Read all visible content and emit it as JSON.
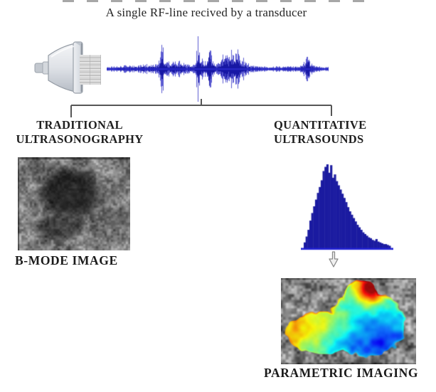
{
  "title": "A single RF-line recived by a transducer",
  "branch_left": {
    "line1": "TRADITIONAL",
    "line2": "ULTRASONOGRAPHY",
    "caption": "B-MODE IMAGE"
  },
  "branch_right": {
    "line1": "QUANTITATIVE",
    "line2": "ULTRASOUNDS",
    "caption": "PARAMETRIC IMAGING"
  },
  "colors": {
    "waveform_blue": "rgba(28,28,192,0.72)",
    "waveform_core": "rgba(16,16,158,0.9)",
    "waveform_center": "rgba(42,42,205,0.85)",
    "histogram_fill": "#1b1ba0",
    "histogram_baseline": "#2424d4",
    "bracket_gray": "#565656",
    "arrow_gray": "#8a8a8a",
    "text_dark": "#1c1c1c"
  },
  "waveform": {
    "seed": 11,
    "envelope": [
      [
        0,
        2
      ],
      [
        14,
        3
      ],
      [
        26,
        4
      ],
      [
        38,
        4
      ],
      [
        52,
        5
      ],
      [
        62,
        5
      ],
      [
        70,
        6
      ],
      [
        74,
        9
      ],
      [
        77,
        33
      ],
      [
        81,
        10
      ],
      [
        86,
        8
      ],
      [
        91,
        11
      ],
      [
        96,
        8
      ],
      [
        101,
        10
      ],
      [
        107,
        8
      ],
      [
        113,
        5
      ],
      [
        120,
        4
      ],
      [
        125,
        9
      ],
      [
        128,
        41
      ],
      [
        132,
        13
      ],
      [
        137,
        10
      ],
      [
        141,
        13
      ],
      [
        144,
        43
      ],
      [
        148,
        13
      ],
      [
        153,
        7
      ],
      [
        158,
        6
      ],
      [
        162,
        17
      ],
      [
        167,
        23
      ],
      [
        171,
        17
      ],
      [
        175,
        25
      ],
      [
        179,
        19
      ],
      [
        183,
        22
      ],
      [
        187,
        16
      ],
      [
        191,
        12
      ],
      [
        196,
        7
      ],
      [
        203,
        4
      ],
      [
        214,
        3
      ],
      [
        228,
        2
      ],
      [
        242,
        3
      ],
      [
        256,
        3
      ],
      [
        268,
        3
      ],
      [
        275,
        5
      ],
      [
        279,
        9
      ],
      [
        282,
        21
      ],
      [
        286,
        8
      ],
      [
        292,
        4
      ],
      [
        301,
        2
      ],
      [
        311,
        2
      ]
    ]
  },
  "histogram": {
    "type": "histogram",
    "bar_heights": [
      0.07,
      0.14,
      0.22,
      0.33,
      0.42,
      0.5,
      0.58,
      0.66,
      0.73,
      0.81,
      0.92,
      0.97,
      1.0,
      0.9,
      0.99,
      0.84,
      0.88,
      0.8,
      0.75,
      0.7,
      0.65,
      0.6,
      0.55,
      0.49,
      0.44,
      0.4,
      0.36,
      0.32,
      0.28,
      0.25,
      0.22,
      0.19,
      0.17,
      0.15,
      0.13,
      0.12,
      0.1,
      0.09,
      0.11,
      0.08,
      0.07,
      0.06,
      0.05,
      0.05,
      0.04,
      0.03
    ]
  },
  "bmode_image": {
    "seed": 5,
    "description": "grayscale B-mode ultrasound with dark hypoechoic lesion"
  },
  "parametric_image": {
    "seed": 9,
    "description": "B-mode background with jet-colormap parametric overlay"
  }
}
